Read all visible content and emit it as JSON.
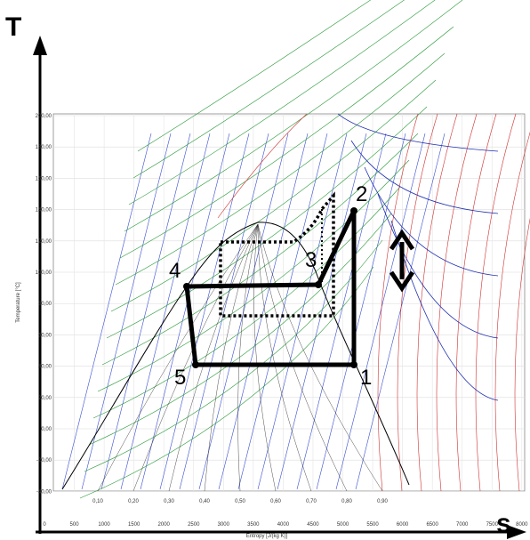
{
  "axes": {
    "y_label": "T",
    "x_label": "s"
  },
  "diagram": {
    "y_axis_title": "Temperature [°C]",
    "x_axis_title": "Entropy [J/(kg K)]",
    "y_ticks": [
      "200,00",
      "180,00",
      "160,00",
      "140,00",
      "120,00",
      "100,00",
      "80,00",
      "60,00",
      "40,00",
      "20,00",
      "0,00",
      "-20,00",
      "-40,00"
    ],
    "x_ticks": [
      "0",
      "500",
      "1000",
      "1500",
      "2000",
      "2500",
      "3000",
      "3500",
      "4000",
      "4500",
      "5000",
      "5500",
      "6000",
      "6500",
      "7000",
      "7500",
      "8000"
    ],
    "quality_ticks": [
      "0,10",
      "0,20",
      "0,30",
      "0,40",
      "0,50",
      "0,60",
      "0,70",
      "0,80",
      "0,90"
    ]
  },
  "points": [
    "1",
    "2",
    "3",
    "4",
    "5"
  ]
}
